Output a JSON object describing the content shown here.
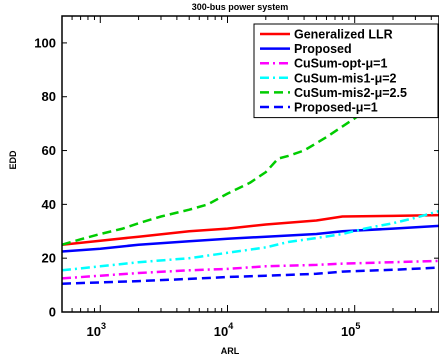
{
  "chart_data": {
    "type": "line",
    "title": "300-bus power system",
    "xlabel": "ARL",
    "ylabel": "EDD",
    "xscale": "log",
    "xlim": [
      500,
      460000
    ],
    "ylim": [
      0,
      110
    ],
    "x_ticks": [
      {
        "value": 1000,
        "base": "10",
        "exp": "3"
      },
      {
        "value": 10000,
        "base": "10",
        "exp": "4"
      },
      {
        "value": 100000,
        "base": "10",
        "exp": "5"
      }
    ],
    "y_ticks": [
      0,
      20,
      40,
      60,
      80,
      100
    ],
    "grid": false,
    "legend": {
      "position": "top-right",
      "box": true
    },
    "series": [
      {
        "name": "Generalized LLR",
        "color": "#ff0000",
        "dash": "solid",
        "x": [
          500,
          1000,
          2000,
          5000,
          10000,
          20000,
          50000,
          80000,
          200000,
          460000
        ],
        "y": [
          25,
          26.5,
          28,
          30,
          31,
          32.5,
          34,
          35.5,
          35.7,
          36
        ]
      },
      {
        "name": "Proposed",
        "color": "#0000ff",
        "dash": "solid",
        "x": [
          500,
          1000,
          2000,
          5000,
          10000,
          20000,
          50000,
          80000,
          200000,
          460000
        ],
        "y": [
          22.5,
          23.5,
          25,
          26.3,
          27.2,
          28,
          29,
          30,
          31,
          32
        ]
      },
      {
        "name": "CuSum-opt-μ=1",
        "color": "#ff00ff",
        "dash": "dashdot",
        "x": [
          500,
          1000,
          2000,
          5000,
          10000,
          20000,
          50000,
          80000,
          200000,
          460000
        ],
        "y": [
          12.5,
          13.5,
          14.5,
          15.5,
          16,
          17,
          17.5,
          18,
          18.5,
          19
        ]
      },
      {
        "name": "CuSum-mis1-μ=2",
        "color": "#00ffff",
        "dash": "dashdot",
        "x": [
          500,
          1000,
          2000,
          5000,
          10000,
          20000,
          30000,
          50000,
          80000,
          120000,
          200000,
          300000,
          460000
        ],
        "y": [
          15.5,
          17,
          18.5,
          20,
          22,
          24,
          26,
          27.5,
          29,
          31,
          33,
          35,
          37.5
        ]
      },
      {
        "name": "CuSum-mis2-μ=2.5",
        "color": "#00cc00",
        "dash": "dashed",
        "x": [
          500,
          700,
          1000,
          1500,
          2000,
          3000,
          5000,
          7000,
          10000,
          15000,
          20000,
          25000,
          30000,
          40000,
          60000,
          100000,
          150000,
          200000,
          250000,
          300000,
          350000,
          400000,
          460000
        ],
        "y": [
          25,
          27,
          29,
          31,
          33,
          35.5,
          38,
          40,
          44,
          48,
          52,
          57,
          58,
          60,
          65,
          72,
          78,
          83,
          87,
          91,
          95,
          99,
          102
        ]
      },
      {
        "name": "Proposed-μ=1",
        "color": "#0000ff",
        "dash": "dashed",
        "x": [
          500,
          1000,
          2000,
          5000,
          10000,
          20000,
          50000,
          80000,
          200000,
          460000
        ],
        "y": [
          10.5,
          11,
          11.5,
          12.3,
          13,
          13.5,
          14.2,
          15,
          15.7,
          16.5
        ]
      }
    ]
  }
}
